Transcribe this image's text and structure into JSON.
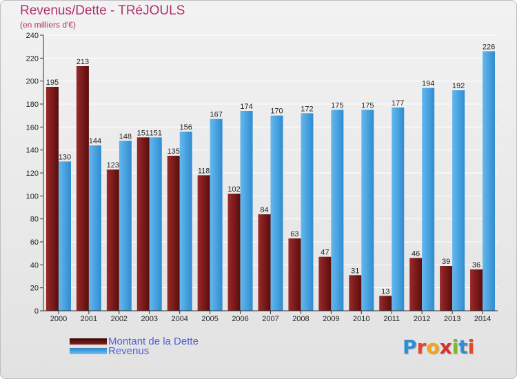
{
  "header": {
    "title": "Revenus/Dette - TRéJOULS",
    "unit": "(en milliers d'€)"
  },
  "legend": {
    "dette_label": "Montant de la Dette",
    "revenus_label": "Revenus"
  },
  "logo": {
    "text": "Proxiti",
    "letters": [
      "P",
      "r",
      "o",
      "x",
      "i",
      "t",
      "i"
    ],
    "letter_colors": [
      "#2a8fd6",
      "#e8442a",
      "#f2a51a",
      "#d8302a",
      "#7ab82e",
      "#2a8fd6",
      "#e8442a"
    ]
  },
  "colors": {
    "dette": "#7a1b1b",
    "dette_dark": "#4a0808",
    "revenus": "#55aee8",
    "revenus_dark": "#2b86c8",
    "title": "#b0306a",
    "legend_text": "#4d5fd6"
  },
  "chart_data": {
    "type": "bar",
    "title": "Revenus/Dette - TRéJOULS",
    "ylabel": "(en milliers d'€)",
    "categories": [
      "2000",
      "2001",
      "2002",
      "2003",
      "2004",
      "2005",
      "2006",
      "2007",
      "2008",
      "2009",
      "2010",
      "2011",
      "2012",
      "2013",
      "2014"
    ],
    "series": [
      {
        "name": "Montant de la Dette",
        "values": [
          195,
          213,
          123,
          151,
          135,
          118,
          102,
          84,
          63,
          47,
          31,
          13,
          46,
          39,
          36
        ]
      },
      {
        "name": "Revenus",
        "values": [
          130,
          144,
          148,
          151,
          156,
          167,
          174,
          170,
          172,
          175,
          175,
          177,
          194,
          192,
          226
        ]
      }
    ],
    "ylim": [
      0,
      240
    ],
    "yticks": [
      0,
      20,
      40,
      60,
      80,
      100,
      120,
      140,
      160,
      180,
      200,
      220,
      240
    ],
    "grid": true,
    "legend_position": "bottom-left"
  }
}
